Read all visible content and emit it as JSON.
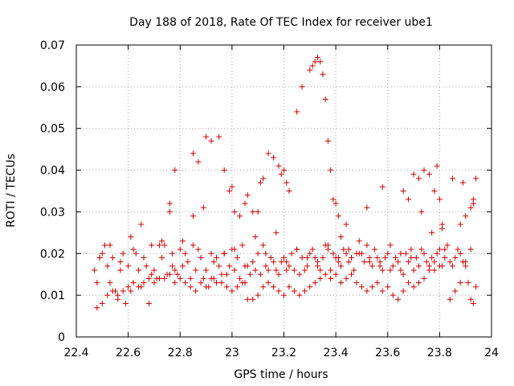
{
  "chart_data": {
    "type": "scatter",
    "title": "Day 188 of 2018, Rate Of TEC Index for receiver ube1",
    "xlabel": "GPS time / hours",
    "ylabel": "ROTI / TECUs",
    "xlim": [
      22.4,
      24
    ],
    "ylim": [
      0,
      0.07
    ],
    "xticks": [
      22.4,
      22.6,
      22.8,
      23.0,
      23.2,
      23.4,
      23.6,
      23.8,
      24.0
    ],
    "xtick_labels": [
      "22.4",
      "22.6",
      "22.8",
      "23",
      "23.2",
      "23.4",
      "23.6",
      "23.8",
      "24"
    ],
    "yticks": [
      0,
      0.01,
      0.02,
      0.03,
      0.04,
      0.05,
      0.06,
      0.07
    ],
    "ytick_labels": [
      "0",
      "0.01",
      "0.02",
      "0.03",
      "0.04",
      "0.05",
      "0.06",
      "0.07"
    ],
    "grid": true,
    "marker": "+",
    "color": "#cc0000",
    "series": [
      {
        "name": "ROTI",
        "x": [
          22.47,
          22.48,
          22.49,
          22.5,
          22.51,
          22.52,
          22.53,
          22.54,
          22.55,
          22.56,
          22.57,
          22.58,
          22.59,
          22.6,
          22.61,
          22.62,
          22.63,
          22.64,
          22.65,
          22.66,
          22.67,
          22.68,
          22.69,
          22.7,
          22.71,
          22.72,
          22.73,
          22.74,
          22.75,
          22.76,
          22.77,
          22.78,
          22.79,
          22.8,
          22.81,
          22.82,
          22.83,
          22.84,
          22.85,
          22.86,
          22.87,
          22.88,
          22.89,
          22.9,
          22.91,
          22.92,
          22.93,
          22.94,
          22.95,
          22.96,
          22.97,
          22.98,
          22.99,
          23.0,
          23.01,
          23.02,
          23.03,
          23.04,
          23.05,
          23.06,
          23.07,
          23.08,
          23.09,
          23.1,
          23.11,
          23.12,
          23.13,
          23.14,
          23.15,
          23.16,
          23.17,
          23.18,
          23.19,
          23.2,
          23.21,
          23.22,
          23.23,
          23.24,
          23.25,
          23.26,
          23.27,
          23.28,
          23.29,
          23.3,
          23.31,
          23.32,
          23.33,
          23.34,
          23.35,
          23.36,
          23.37,
          23.38,
          23.39,
          23.4,
          23.41,
          23.42,
          23.43,
          23.44,
          23.45,
          23.46,
          23.47,
          23.48,
          23.49,
          23.5,
          23.51,
          23.52,
          23.53,
          23.54,
          23.55,
          23.56,
          23.57,
          23.58,
          23.59,
          23.6,
          23.61,
          23.62,
          23.63,
          23.64,
          23.65,
          23.66,
          23.67,
          23.68,
          23.69,
          23.7,
          23.71,
          23.72,
          23.73,
          23.74,
          23.75,
          23.76,
          23.77,
          23.78,
          23.79,
          23.8,
          23.81,
          23.82,
          23.83,
          23.84,
          23.85,
          23.86,
          23.87,
          23.88,
          23.89,
          23.9,
          23.91,
          23.92,
          23.93,
          23.94,
          22.48,
          22.5,
          22.52,
          22.54,
          22.56,
          22.58,
          22.6,
          22.62,
          22.64,
          22.66,
          22.68,
          22.7,
          22.72,
          22.74,
          22.76,
          22.78,
          22.8,
          22.82,
          22.84,
          22.86,
          22.88,
          22.9,
          22.92,
          22.94,
          22.96,
          22.98,
          23.0,
          23.02,
          23.04,
          23.06,
          23.08,
          23.1,
          23.12,
          23.14,
          23.16,
          23.18,
          23.2,
          23.22,
          23.24,
          23.26,
          23.28,
          23.3,
          23.32,
          23.34,
          23.36,
          23.38,
          23.4,
          23.42,
          23.44,
          23.46,
          23.48,
          23.5,
          23.52,
          23.54,
          23.56,
          23.58,
          23.6,
          23.62,
          23.64,
          23.66,
          23.68,
          23.7,
          23.72,
          23.74,
          23.76,
          23.78,
          23.8,
          23.82,
          23.84,
          23.86,
          23.88,
          23.9,
          23.92,
          22.49,
          22.53,
          22.57,
          22.61,
          22.65,
          22.69,
          22.73,
          22.77,
          22.81,
          22.85,
          22.89,
          22.93,
          22.97,
          23.01,
          23.05,
          23.09,
          23.13,
          23.17,
          23.21,
          23.25,
          23.29,
          23.33,
          23.37,
          23.41,
          23.45,
          23.49,
          23.53,
          23.57,
          23.61,
          23.65,
          23.69,
          23.73,
          23.77,
          23.81,
          23.85,
          23.89,
          23.93,
          22.76,
          22.78,
          22.85,
          22.87,
          22.9,
          22.92,
          22.95,
          22.97,
          22.99,
          23.0,
          23.01,
          23.03,
          23.05,
          23.06,
          23.08,
          23.1,
          23.11,
          23.12,
          23.14,
          23.16,
          23.18,
          23.19,
          23.2,
          23.21,
          23.22,
          23.25,
          23.27,
          23.3,
          23.31,
          23.32,
          23.33,
          23.34,
          23.35,
          23.36,
          23.37,
          23.38,
          23.39,
          23.4,
          23.41,
          23.42,
          23.44,
          23.52,
          23.58,
          23.66,
          23.68,
          23.7,
          23.72,
          23.74,
          23.76,
          23.78,
          23.79,
          23.8,
          23.81,
          23.88,
          23.9,
          23.92,
          23.93,
          23.94
        ],
        "y": [
          0.016,
          0.007,
          0.019,
          0.02,
          0.022,
          0.017,
          0.013,
          0.019,
          0.011,
          0.009,
          0.018,
          0.02,
          0.008,
          0.017,
          0.011,
          0.021,
          0.02,
          0.016,
          0.012,
          0.019,
          0.017,
          0.008,
          0.015,
          0.016,
          0.014,
          0.022,
          0.023,
          0.022,
          0.015,
          0.03,
          0.02,
          0.016,
          0.015,
          0.021,
          0.017,
          0.02,
          0.018,
          0.014,
          0.022,
          0.016,
          0.021,
          0.019,
          0.014,
          0.016,
          0.012,
          0.02,
          0.014,
          0.019,
          0.017,
          0.015,
          0.02,
          0.015,
          0.017,
          0.021,
          0.016,
          0.019,
          0.014,
          0.022,
          0.013,
          0.017,
          0.015,
          0.018,
          0.016,
          0.02,
          0.015,
          0.022,
          0.017,
          0.016,
          0.019,
          0.018,
          0.016,
          0.015,
          0.018,
          0.019,
          0.016,
          0.017,
          0.02,
          0.016,
          0.021,
          0.015,
          0.019,
          0.016,
          0.017,
          0.02,
          0.021,
          0.019,
          0.018,
          0.016,
          0.019,
          0.022,
          0.021,
          0.016,
          0.02,
          0.019,
          0.018,
          0.017,
          0.021,
          0.02,
          0.018,
          0.019,
          0.016,
          0.02,
          0.023,
          0.02,
          0.018,
          0.022,
          0.019,
          0.017,
          0.021,
          0.019,
          0.018,
          0.016,
          0.019,
          0.02,
          0.022,
          0.017,
          0.019,
          0.018,
          0.016,
          0.015,
          0.02,
          0.018,
          0.021,
          0.016,
          0.019,
          0.017,
          0.021,
          0.02,
          0.018,
          0.017,
          0.019,
          0.016,
          0.02,
          0.021,
          0.017,
          0.019,
          0.022,
          0.018,
          0.017,
          0.019,
          0.021,
          0.02,
          0.018,
          0.017,
          0.013,
          0.009,
          0.008,
          0.012,
          0.013,
          0.008,
          0.01,
          0.011,
          0.01,
          0.011,
          0.012,
          0.013,
          0.012,
          0.013,
          0.014,
          0.013,
          0.014,
          0.014,
          0.015,
          0.013,
          0.014,
          0.013,
          0.012,
          0.011,
          0.013,
          0.012,
          0.014,
          0.013,
          0.013,
          0.012,
          0.011,
          0.012,
          0.013,
          0.009,
          0.009,
          0.01,
          0.012,
          0.013,
          0.012,
          0.011,
          0.01,
          0.012,
          0.011,
          0.01,
          0.011,
          0.012,
          0.013,
          0.014,
          0.015,
          0.014,
          0.015,
          0.013,
          0.014,
          0.015,
          0.013,
          0.012,
          0.011,
          0.012,
          0.013,
          0.011,
          0.012,
          0.01,
          0.009,
          0.011,
          0.013,
          0.012,
          0.013,
          0.014,
          0.016,
          0.018,
          0.017,
          0.021,
          0.009,
          0.011,
          0.013,
          0.018,
          0.021,
          0.019,
          0.022,
          0.016,
          0.024,
          0.027,
          0.022,
          0.019,
          0.017,
          0.023,
          0.029,
          0.031,
          0.018,
          0.02,
          0.021,
          0.017,
          0.024,
          0.02,
          0.025,
          0.018,
          0.021,
          0.019,
          0.017,
          0.022,
          0.019,
          0.021,
          0.02,
          0.018,
          0.017,
          0.016,
          0.02,
          0.019,
          0.03,
          0.025,
          0.026,
          0.038,
          0.037,
          0.033,
          0.032,
          0.04,
          0.044,
          0.042,
          0.048,
          0.047,
          0.048,
          0.04,
          0.035,
          0.036,
          0.03,
          0.029,
          0.032,
          0.034,
          0.03,
          0.03,
          0.037,
          0.038,
          0.044,
          0.043,
          0.041,
          0.039,
          0.04,
          0.037,
          0.035,
          0.054,
          0.06,
          0.064,
          0.065,
          0.066,
          0.067,
          0.066,
          0.063,
          0.057,
          0.047,
          0.04,
          0.033,
          0.032,
          0.029,
          0.024,
          0.027,
          0.031,
          0.036,
          0.035,
          0.033,
          0.039,
          0.038,
          0.04,
          0.039,
          0.035,
          0.041,
          0.033,
          0.027,
          0.027,
          0.029,
          0.031,
          0.032,
          0.038
        ]
      }
    ]
  }
}
